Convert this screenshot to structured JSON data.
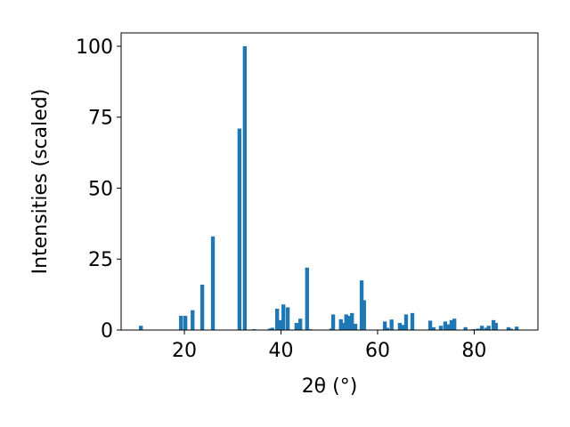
{
  "chart_data": {
    "type": "bar",
    "color": "#1f77b4",
    "xlabel": "2θ (°)",
    "ylabel": "Intensities (scaled)",
    "x": [
      11.0,
      19.3,
      20.2,
      21.7,
      23.7,
      25.9,
      31.4,
      32.5,
      34.4,
      37.7,
      38.2,
      39.2,
      39.9,
      40.5,
      41.4,
      43.2,
      44.0,
      45.4,
      46.0,
      50.4,
      50.8,
      52.4,
      53.0,
      53.5,
      54.1,
      54.7,
      55.4,
      56.7,
      57.2,
      61.5,
      62.0,
      62.9,
      64.6,
      65.2,
      65.9,
      67.2,
      70.9,
      71.6,
      73.1,
      74.0,
      74.7,
      75.3,
      75.9,
      78.2,
      79.9,
      80.8,
      81.6,
      82.5,
      83.0,
      84.0,
      84.5,
      87.1,
      87.6,
      88.8
    ],
    "values": [
      1.5,
      5,
      5,
      7,
      16,
      33,
      71,
      100,
      0.3,
      0.5,
      0.8,
      7.5,
      3.5,
      9,
      8,
      2.5,
      4,
      22,
      0.3,
      0.5,
      5.5,
      3.8,
      2.5,
      5.5,
      5,
      6,
      2.2,
      17.5,
      10.5,
      3,
      0.8,
      3.7,
      2.5,
      1.8,
      5.5,
      6,
      3.3,
      1,
      1.5,
      3,
      2,
      3.5,
      4,
      1,
      0.3,
      0.5,
      1.5,
      0.8,
      1.5,
      3.5,
      2.5,
      1,
      0.5,
      1.2
    ],
    "xlim": [
      6.9,
      93.2
    ],
    "ylim": [
      0,
      104.7
    ],
    "xticks": [
      20,
      40,
      60,
      80
    ],
    "yticks": [
      0,
      25,
      50,
      75,
      100
    ]
  }
}
